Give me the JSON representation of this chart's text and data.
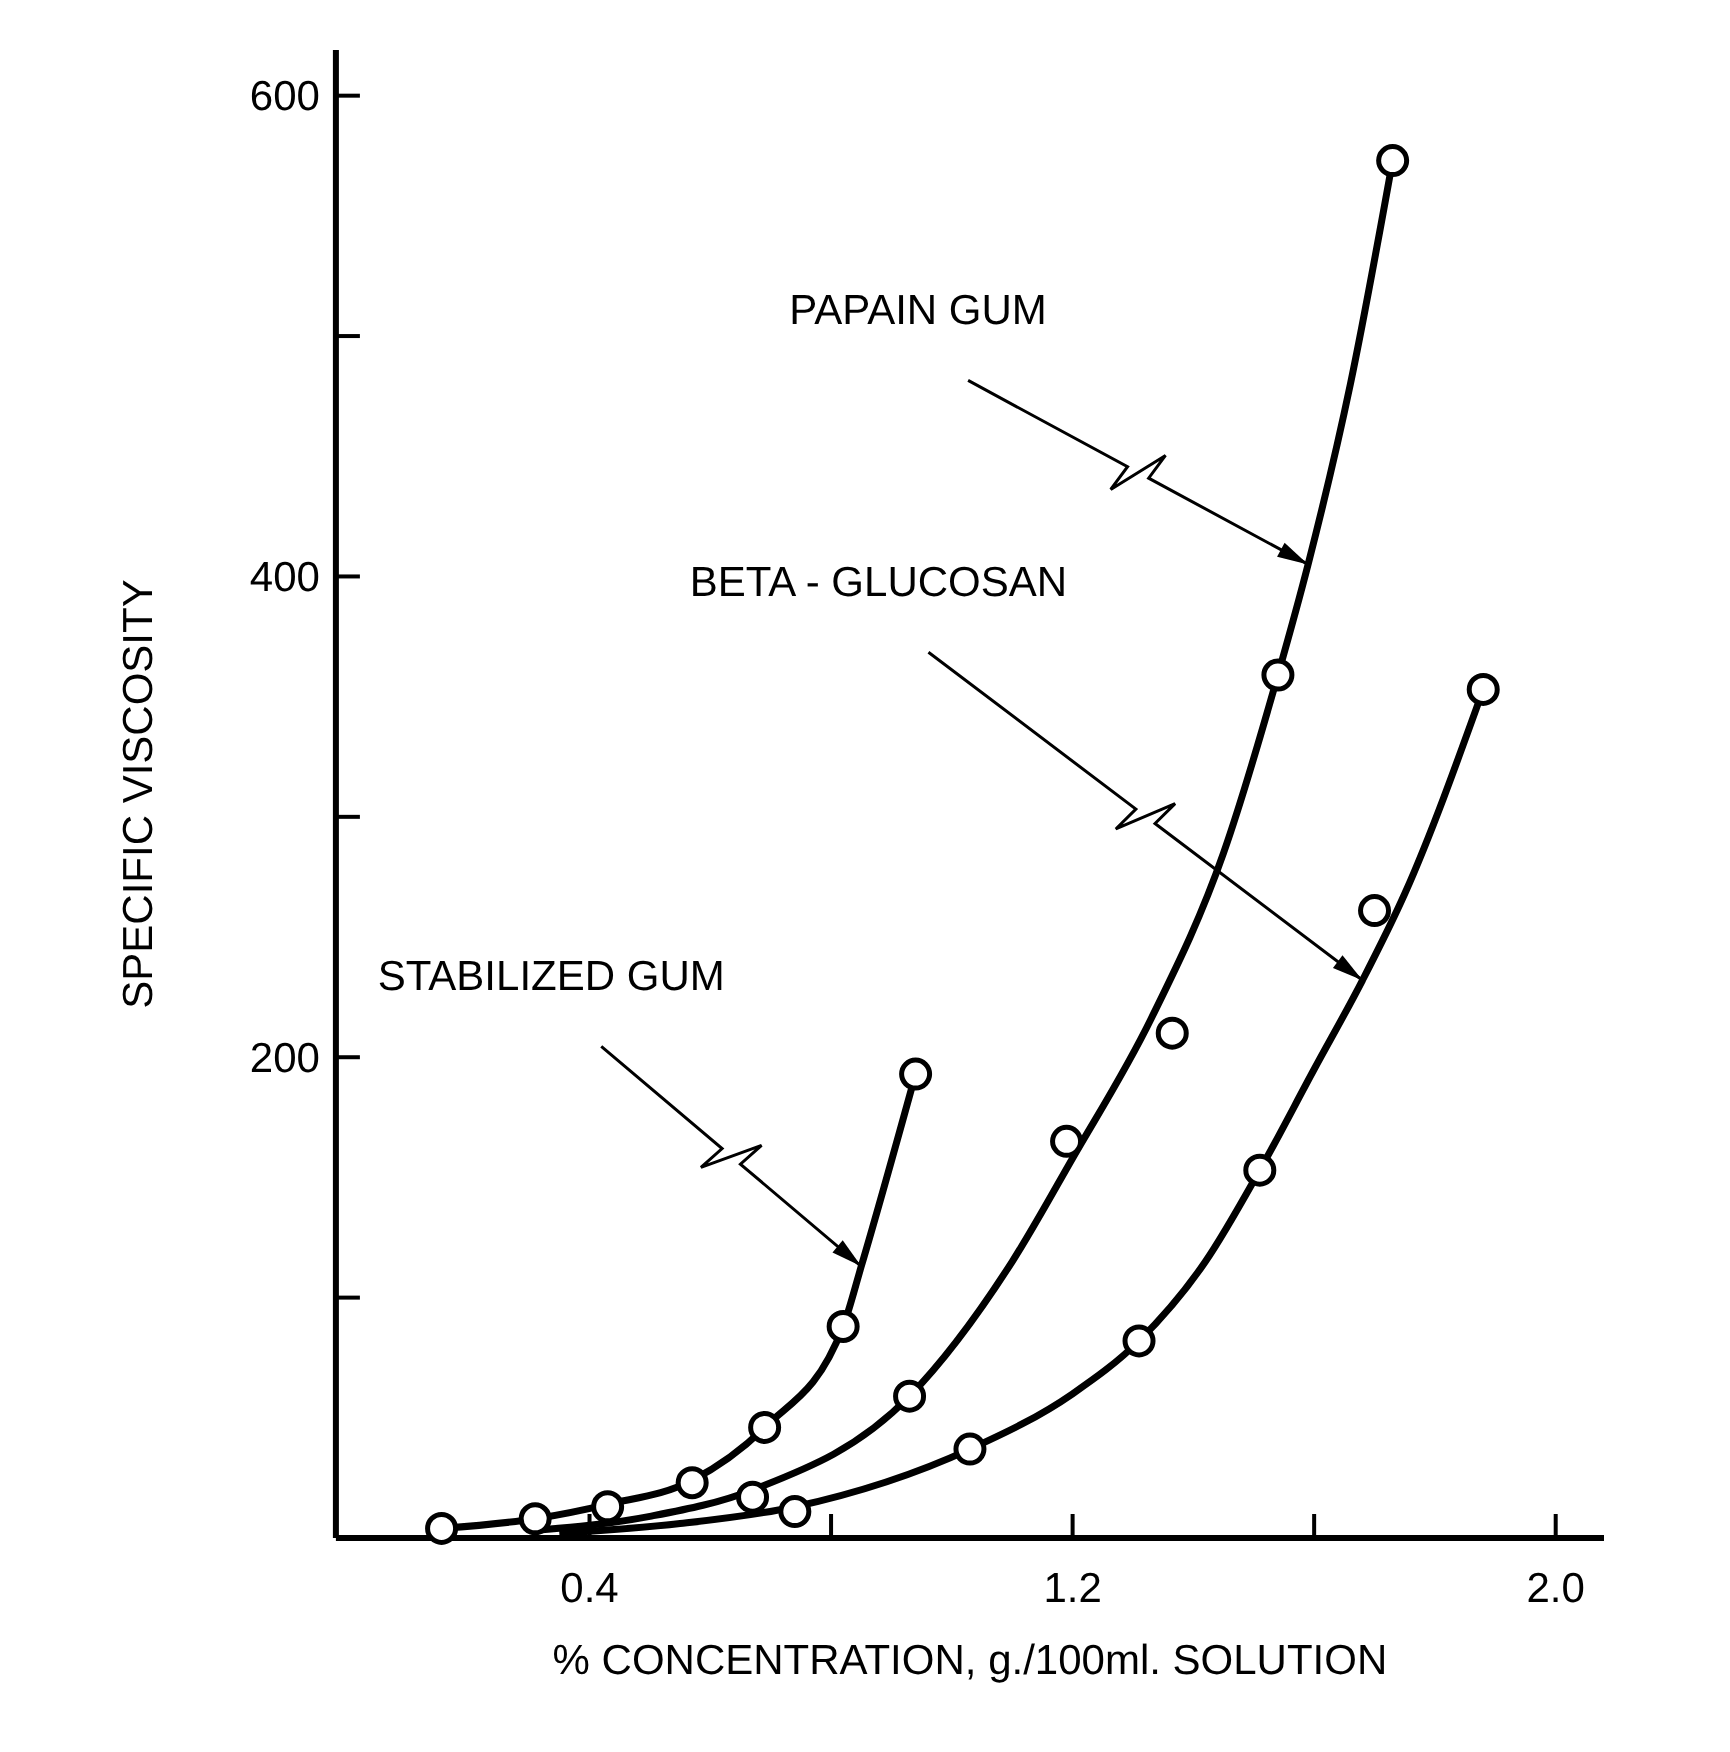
{
  "chart_data": {
    "type": "line",
    "xlabel": "% CONCENTRATION, g./100ml. SOLUTION",
    "ylabel": "SPECIFIC VISCOSITY",
    "xlim": [
      -0.02,
      2.08
    ],
    "ylim": [
      0,
      619
    ],
    "xticks": [
      {
        "value": 0.4,
        "label": "0.4"
      },
      {
        "value": 0.8,
        "label": null
      },
      {
        "value": 1.2,
        "label": "1.2"
      },
      {
        "value": 1.6,
        "label": null
      },
      {
        "value": 2.0,
        "label": "2.0"
      }
    ],
    "yticks": [
      {
        "value": 100,
        "label": null
      },
      {
        "value": 200,
        "label": "200"
      },
      {
        "value": 300,
        "label": null
      },
      {
        "value": 400,
        "label": "400"
      },
      {
        "value": 500,
        "label": null
      },
      {
        "value": 600,
        "label": "600"
      }
    ],
    "grid": false,
    "line_style": "solid",
    "series": [
      {
        "marker": "none",
        "color": "#000000",
        "x": [
          0.155,
          0.31,
          0.43,
          0.57,
          0.69,
          0.82,
          0.85,
          0.94
        ],
        "values": [
          4,
          8,
          14,
          24,
          46,
          88,
          113,
          193
        ]
      },
      {
        "marker": "none",
        "color": "#000000",
        "x": [
          0.3,
          0.5,
          0.67,
          0.93,
          1.1,
          1.2,
          1.33,
          1.45,
          1.54,
          1.59,
          1.66,
          1.73
        ],
        "values": [
          3,
          9,
          20,
          59,
          115,
          158,
          216,
          285,
          359,
          405,
          480,
          573
        ]
      },
      {
        "marker": "none",
        "color": "#000000",
        "x": [
          0.35,
          0.55,
          0.74,
          1.03,
          1.2,
          1.31,
          1.42,
          1.51,
          1.6,
          1.68,
          1.75,
          1.88
        ],
        "values": [
          2,
          6,
          13,
          37,
          60,
          82,
          115,
          153,
          195,
          232,
          268,
          353
        ]
      },
      {
        "type": "scatter",
        "marker": "circle",
        "color": "#000000",
        "x": [
          0.155,
          0.31,
          0.43,
          0.57,
          0.69,
          0.82,
          0.94
        ],
        "values": [
          4,
          8,
          13,
          23,
          46,
          88,
          193
        ]
      },
      {
        "type": "scatter",
        "marker": "circle",
        "color": "#000000",
        "x": [
          0.67,
          0.93,
          1.19,
          1.365,
          1.54,
          1.73
        ],
        "values": [
          17,
          59,
          165,
          210,
          359,
          573
        ]
      },
      {
        "type": "scatter",
        "marker": "circle",
        "color": "#000000",
        "x": [
          0.74,
          1.03,
          1.31,
          1.51,
          1.7,
          1.88
        ],
        "values": [
          11,
          37,
          82,
          153,
          261,
          353
        ]
      }
    ],
    "annotations": [
      {
        "text": "PAPAIN GUM",
        "x": 1.59,
        "y": 405
      },
      {
        "text": "BETA - GLUCOSAN",
        "x": 1.68,
        "y": 232
      },
      {
        "text": "STABILIZED GUM",
        "x": 0.85,
        "y": 113
      }
    ]
  }
}
